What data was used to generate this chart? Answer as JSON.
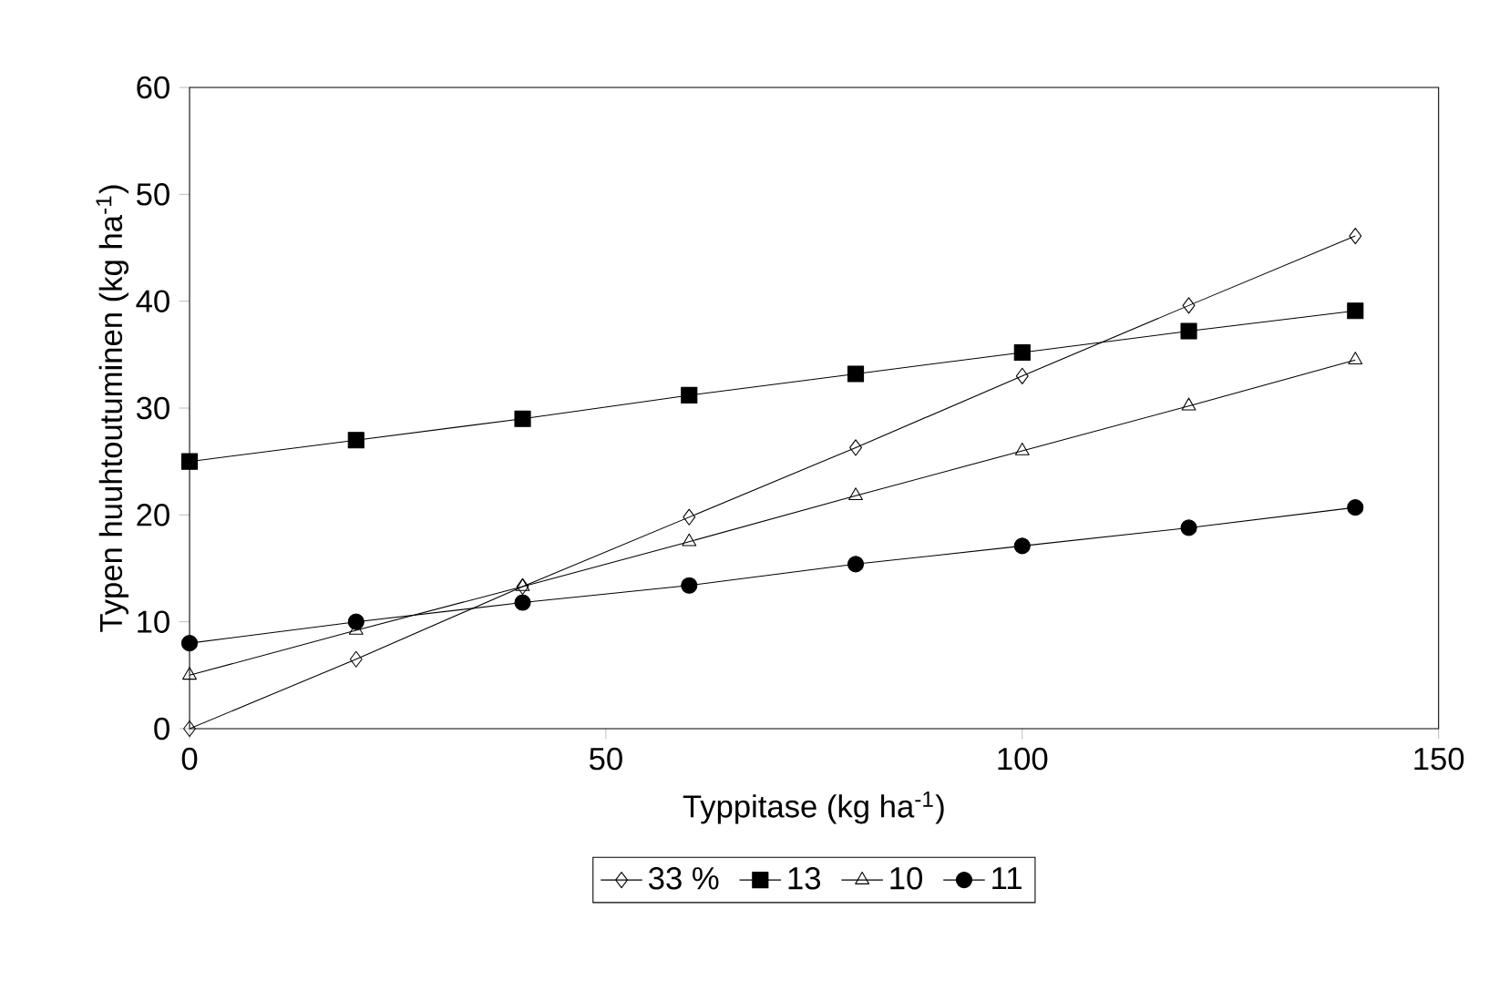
{
  "chart_data": {
    "type": "line",
    "xlabel": "Typpitase (kg ha$^{-1}$)",
    "ylabel": "Typen huuhtoutuminen (kg ha$^{-1}$)",
    "x": [
      0,
      20,
      40,
      60,
      80,
      100,
      120,
      140
    ],
    "series": [
      {
        "name": "33 %",
        "color": "#000000",
        "marker": "diamond",
        "values": [
          0,
          6.5,
          13.3,
          19.8,
          26.3,
          33,
          39.6,
          46.1
        ]
      },
      {
        "name": "13",
        "color": "#000000",
        "marker": "square",
        "values": [
          25,
          27,
          29,
          31.2,
          33.2,
          35.2,
          37.2,
          39.1
        ]
      },
      {
        "name": "10",
        "color": "#000000",
        "marker": "triangle",
        "values": [
          5,
          9.2,
          13.3,
          17.5,
          21.8,
          26,
          30.2,
          34.5
        ]
      },
      {
        "name": "11",
        "color": "#000000",
        "marker": "circle",
        "values": [
          8,
          10,
          11.8,
          13.4,
          15.4,
          17.1,
          18.8,
          20.7
        ]
      }
    ],
    "xlim": [
      0,
      150
    ],
    "xticks": [
      0,
      50,
      100,
      150
    ],
    "ylim": [
      0,
      60
    ],
    "yticks": [
      0,
      10,
      20,
      30,
      40,
      50,
      60
    ],
    "legend": "bottom",
    "grid": false,
    "line_style": "solid"
  }
}
